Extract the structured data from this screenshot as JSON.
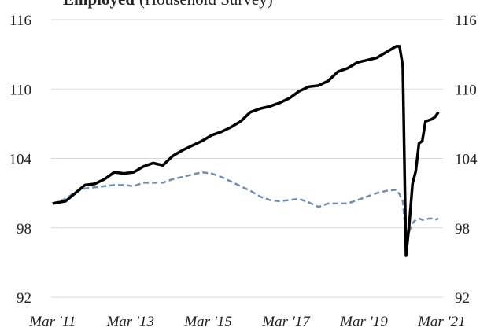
{
  "chart_data": {
    "type": "line",
    "title": "Employed",
    "subtitle": "(Household Survey)",
    "x": [
      2011.167,
      2011.5,
      2011.75,
      2012.0,
      2012.25,
      2012.5,
      2012.75,
      2013.0,
      2013.25,
      2013.5,
      2013.75,
      2014.0,
      2014.25,
      2014.5,
      2014.75,
      2015.0,
      2015.25,
      2015.5,
      2015.75,
      2016.0,
      2016.25,
      2016.5,
      2016.75,
      2017.0,
      2017.25,
      2017.5,
      2017.75,
      2018.0,
      2018.25,
      2018.5,
      2018.75,
      2019.0,
      2019.25,
      2019.5,
      2019.75,
      2020.0,
      2020.083,
      2020.167,
      2020.25,
      2020.333,
      2020.417,
      2020.5,
      2020.583,
      2020.667,
      2020.75,
      2020.833,
      2020.917,
      2021.0,
      2021.083
    ],
    "series": [
      {
        "color": "#000000",
        "dashed": false,
        "values": [
          100.1,
          100.3,
          101.0,
          101.7,
          101.8,
          102.2,
          102.8,
          102.7,
          102.8,
          103.3,
          103.6,
          103.4,
          104.2,
          104.7,
          105.1,
          105.5,
          106.0,
          106.3,
          106.7,
          107.2,
          108.0,
          108.3,
          108.5,
          108.8,
          109.2,
          109.8,
          110.2,
          110.3,
          110.7,
          111.5,
          111.8,
          112.3,
          112.5,
          112.7,
          113.2,
          113.7,
          113.7,
          112.0,
          95.6,
          98.3,
          101.8,
          102.9,
          105.3,
          105.5,
          107.2,
          107.3,
          107.4,
          107.6,
          108.0
        ]
      },
      {
        "color": "#6f8daf",
        "dashed": true,
        "values": [
          100.1,
          100.5,
          101.1,
          101.4,
          101.5,
          101.6,
          101.7,
          101.7,
          101.6,
          101.9,
          101.9,
          101.9,
          102.2,
          102.4,
          102.6,
          102.8,
          102.7,
          102.4,
          102.0,
          101.6,
          101.2,
          100.7,
          100.4,
          100.3,
          100.4,
          100.5,
          100.2,
          99.8,
          100.1,
          100.1,
          100.1,
          100.4,
          100.7,
          101.0,
          101.2,
          101.3,
          100.9,
          100.3,
          97.2,
          97.7,
          98.4,
          98.7,
          98.8,
          98.7,
          98.7,
          98.8,
          98.8,
          98.7,
          98.8
        ]
      }
    ],
    "xlim": [
      2011.13,
      2021.2
    ],
    "xticks": [
      {
        "value": 2011.167,
        "label": "Mar '11"
      },
      {
        "value": 2013.167,
        "label": "Mar '13"
      },
      {
        "value": 2015.167,
        "label": "Mar '15"
      },
      {
        "value": 2017.167,
        "label": "Mar '17"
      },
      {
        "value": 2019.167,
        "label": "Mar '19"
      },
      {
        "value": 2021.167,
        "label": "Mar '21"
      }
    ],
    "ylim": [
      92,
      116
    ],
    "yticks": [
      92,
      98,
      104,
      110,
      116
    ],
    "y2lim": [
      92,
      116
    ],
    "y2ticks": [
      92,
      98,
      104,
      110,
      116
    ],
    "grid": true
  }
}
